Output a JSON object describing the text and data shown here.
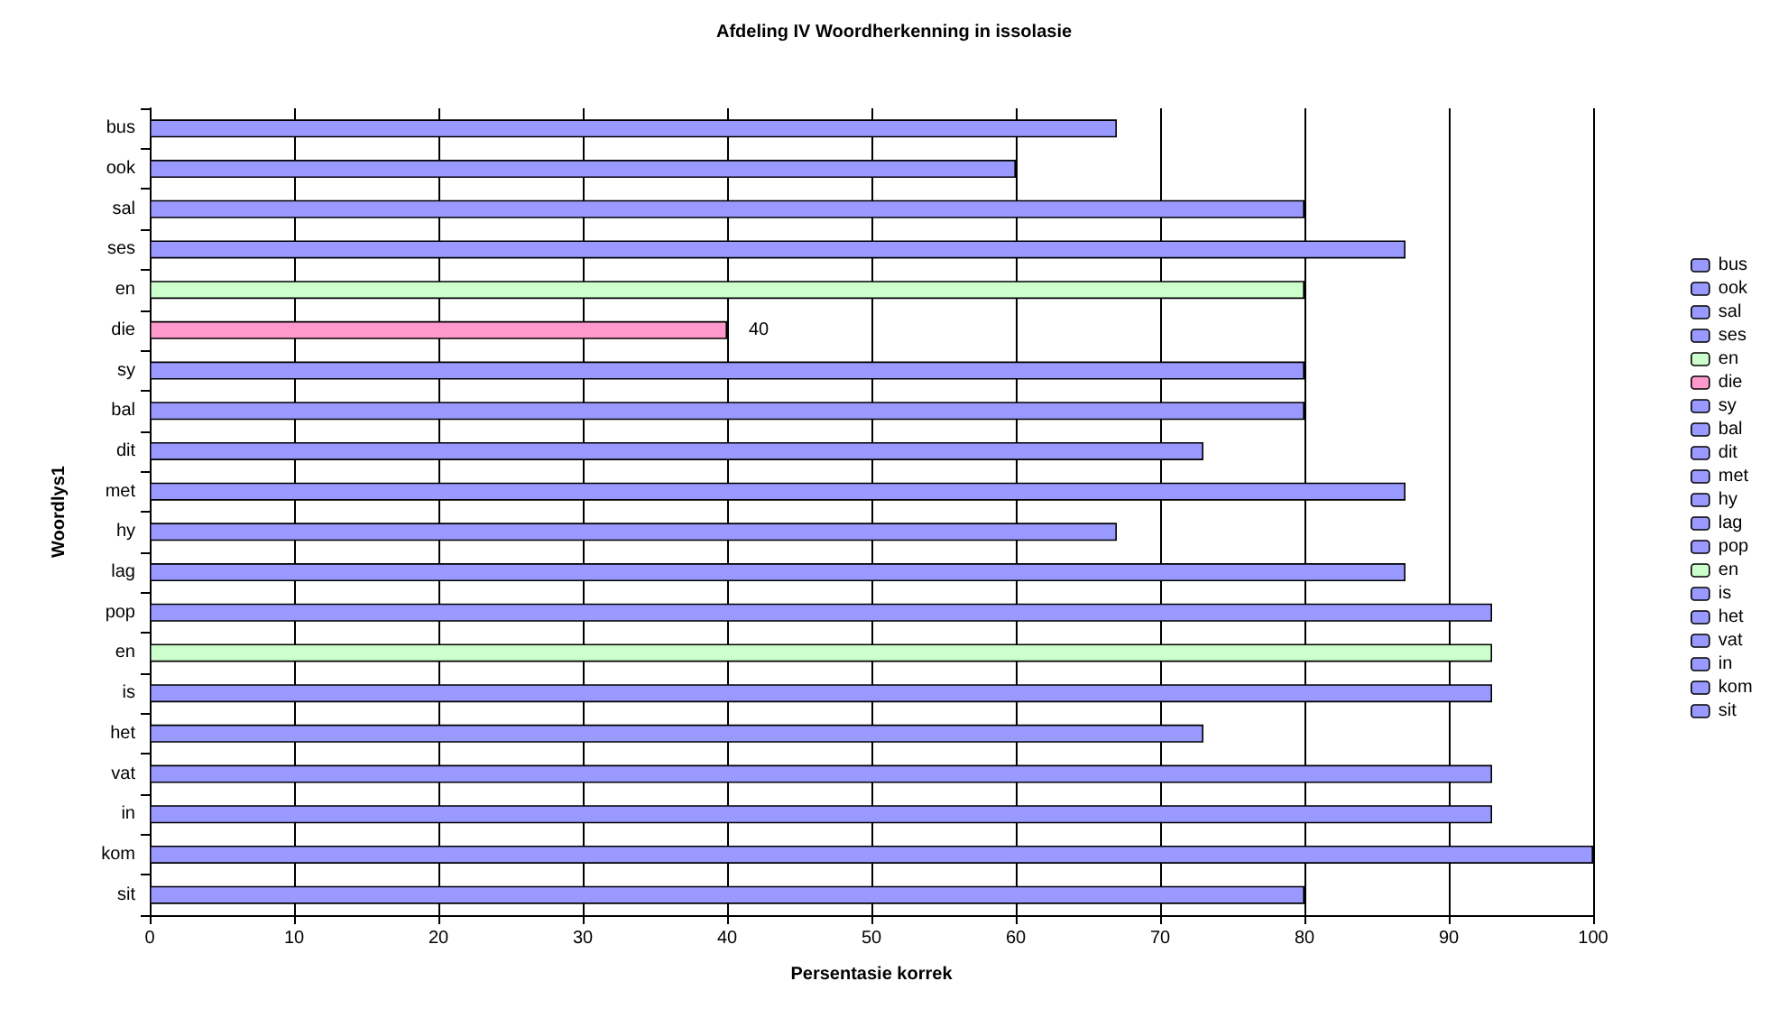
{
  "chart_data": {
    "type": "bar",
    "orientation": "horizontal",
    "title": "Afdeling IV Woordherkenning in issolasie",
    "xlabel": "Persentasie korrek",
    "ylabel": "Woordlys1",
    "categories": [
      "bus",
      "ook",
      "sal",
      "ses",
      "en",
      "die",
      "sy",
      "bal",
      "dit",
      "met",
      "hy",
      "lag",
      "pop",
      "en",
      "is",
      "het",
      "vat",
      "in",
      "kom",
      "sit"
    ],
    "series": [
      {
        "name": "bus",
        "color": "#9999ff",
        "values": [
          67,
          null,
          null,
          null,
          null,
          null,
          null,
          null,
          null,
          null,
          null,
          null,
          null,
          null,
          null,
          null,
          null,
          null,
          null,
          null
        ]
      },
      {
        "name": "ook",
        "color": "#9999ff",
        "values": [
          null,
          60,
          null,
          null,
          null,
          null,
          null,
          null,
          null,
          null,
          null,
          null,
          null,
          null,
          null,
          null,
          null,
          null,
          null,
          null
        ]
      },
      {
        "name": "sal",
        "color": "#9999ff",
        "values": [
          null,
          null,
          80,
          null,
          null,
          null,
          null,
          null,
          null,
          null,
          null,
          null,
          null,
          null,
          null,
          null,
          null,
          null,
          null,
          null
        ]
      },
      {
        "name": "ses",
        "color": "#9999ff",
        "values": [
          null,
          null,
          null,
          87,
          null,
          null,
          null,
          null,
          null,
          null,
          null,
          null,
          null,
          null,
          null,
          null,
          null,
          null,
          null,
          null
        ]
      },
      {
        "name": "en",
        "color": "#ccffcc",
        "values": [
          null,
          null,
          null,
          null,
          80,
          null,
          null,
          null,
          null,
          null,
          null,
          null,
          null,
          null,
          null,
          null,
          null,
          null,
          null,
          null
        ]
      },
      {
        "name": "die",
        "color": "#ff99cc",
        "values": [
          null,
          null,
          null,
          null,
          null,
          40,
          null,
          null,
          null,
          null,
          null,
          null,
          null,
          null,
          null,
          null,
          null,
          null,
          null,
          null
        ],
        "value_labels": [
          null,
          null,
          null,
          null,
          null,
          "40",
          null,
          null,
          null,
          null,
          null,
          null,
          null,
          null,
          null,
          null,
          null,
          null,
          null,
          null
        ]
      },
      {
        "name": "sy",
        "color": "#9999ff",
        "values": [
          null,
          null,
          null,
          null,
          null,
          null,
          80,
          null,
          null,
          null,
          null,
          null,
          null,
          null,
          null,
          null,
          null,
          null,
          null,
          null
        ]
      },
      {
        "name": "bal",
        "color": "#9999ff",
        "values": [
          null,
          null,
          null,
          null,
          null,
          null,
          null,
          80,
          null,
          null,
          null,
          null,
          null,
          null,
          null,
          null,
          null,
          null,
          null,
          null
        ]
      },
      {
        "name": "dit",
        "color": "#9999ff",
        "values": [
          null,
          null,
          null,
          null,
          null,
          null,
          null,
          null,
          73,
          null,
          null,
          null,
          null,
          null,
          null,
          null,
          null,
          null,
          null,
          null
        ]
      },
      {
        "name": "met",
        "color": "#9999ff",
        "values": [
          null,
          null,
          null,
          null,
          null,
          null,
          null,
          null,
          null,
          87,
          null,
          null,
          null,
          null,
          null,
          null,
          null,
          null,
          null,
          null
        ]
      },
      {
        "name": "hy",
        "color": "#9999ff",
        "values": [
          null,
          null,
          null,
          null,
          null,
          null,
          null,
          null,
          null,
          null,
          67,
          null,
          null,
          null,
          null,
          null,
          null,
          null,
          null,
          null
        ]
      },
      {
        "name": "lag",
        "color": "#9999ff",
        "values": [
          null,
          null,
          null,
          null,
          null,
          null,
          null,
          null,
          null,
          null,
          null,
          87,
          null,
          null,
          null,
          null,
          null,
          null,
          null,
          null
        ]
      },
      {
        "name": "pop",
        "color": "#9999ff",
        "values": [
          null,
          null,
          null,
          null,
          null,
          null,
          null,
          null,
          null,
          null,
          null,
          null,
          93,
          null,
          null,
          null,
          null,
          null,
          null,
          null
        ]
      },
      {
        "name": "en",
        "color": "#ccffcc",
        "values": [
          null,
          null,
          null,
          null,
          null,
          null,
          null,
          null,
          null,
          null,
          null,
          null,
          null,
          93,
          null,
          null,
          null,
          null,
          null,
          null
        ]
      },
      {
        "name": "is",
        "color": "#9999ff",
        "values": [
          null,
          null,
          null,
          null,
          null,
          null,
          null,
          null,
          null,
          null,
          null,
          null,
          null,
          null,
          93,
          null,
          null,
          null,
          null,
          null
        ]
      },
      {
        "name": "het",
        "color": "#9999ff",
        "values": [
          null,
          null,
          null,
          null,
          null,
          null,
          null,
          null,
          null,
          null,
          null,
          null,
          null,
          null,
          null,
          73,
          null,
          null,
          null,
          null
        ]
      },
      {
        "name": "vat",
        "color": "#9999ff",
        "values": [
          null,
          null,
          null,
          null,
          null,
          null,
          null,
          null,
          null,
          null,
          null,
          null,
          null,
          null,
          null,
          null,
          93,
          null,
          null,
          null
        ]
      },
      {
        "name": "in",
        "color": "#9999ff",
        "values": [
          null,
          null,
          null,
          null,
          null,
          null,
          null,
          null,
          null,
          null,
          null,
          null,
          null,
          null,
          null,
          null,
          null,
          93,
          null,
          null
        ]
      },
      {
        "name": "kom",
        "color": "#9999ff",
        "values": [
          null,
          null,
          null,
          null,
          null,
          null,
          null,
          null,
          null,
          null,
          null,
          null,
          null,
          null,
          null,
          null,
          null,
          null,
          100,
          null
        ]
      },
      {
        "name": "sit",
        "color": "#9999ff",
        "values": [
          null,
          null,
          null,
          null,
          null,
          null,
          null,
          null,
          null,
          null,
          null,
          null,
          null,
          null,
          null,
          null,
          null,
          null,
          null,
          80
        ]
      }
    ],
    "xlim": [
      0,
      100
    ],
    "xticks": [
      0,
      10,
      20,
      30,
      40,
      50,
      60,
      70,
      80,
      90,
      100
    ],
    "grid": "x",
    "legend": "right"
  }
}
